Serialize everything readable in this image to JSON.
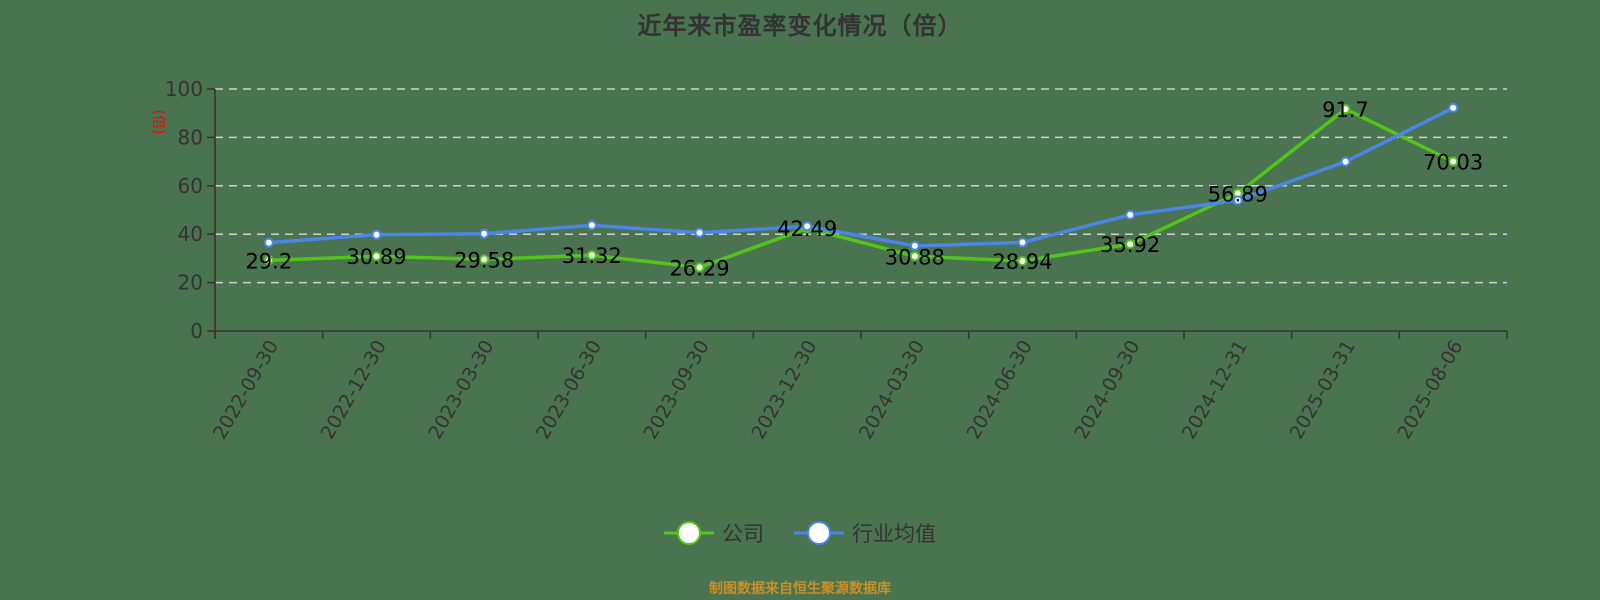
{
  "title": "近年来市盈率变化情况（倍）",
  "footer": "制图数据来自恒生聚源数据库",
  "legend": [
    {
      "label": "公司",
      "color": "#52c41a"
    },
    {
      "label": "行业均值",
      "color": "#4a86e8"
    }
  ],
  "chart_data": {
    "type": "line",
    "title": "近年来市盈率变化情况（倍）",
    "xlabel": "",
    "ylabel": "(倍)",
    "ylim": [
      0,
      100
    ],
    "yticks": [
      0,
      20,
      40,
      60,
      80,
      100
    ],
    "grid": true,
    "legend_position": "bottom",
    "categories": [
      "2022-09-30",
      "2022-12-30",
      "2023-03-30",
      "2023-06-30",
      "2023-09-30",
      "2023-12-30",
      "2024-03-30",
      "2024-06-30",
      "2024-09-30",
      "2024-12-31",
      "2025-03-31",
      "2025-08-06"
    ],
    "series": [
      {
        "name": "公司",
        "color": "#52c41a",
        "show_labels": true,
        "values": [
          29.2,
          30.89,
          29.58,
          31.32,
          26.29,
          42.49,
          30.88,
          28.94,
          35.92,
          56.89,
          91.7,
          70.03
        ]
      },
      {
        "name": "行业均值",
        "color": "#4a86e8",
        "show_labels": false,
        "values": [
          36.5,
          39.8,
          40.2,
          43.7,
          40.6,
          43.3,
          35.2,
          36.6,
          48.0,
          54.0,
          70.0,
          92.2
        ]
      }
    ]
  }
}
